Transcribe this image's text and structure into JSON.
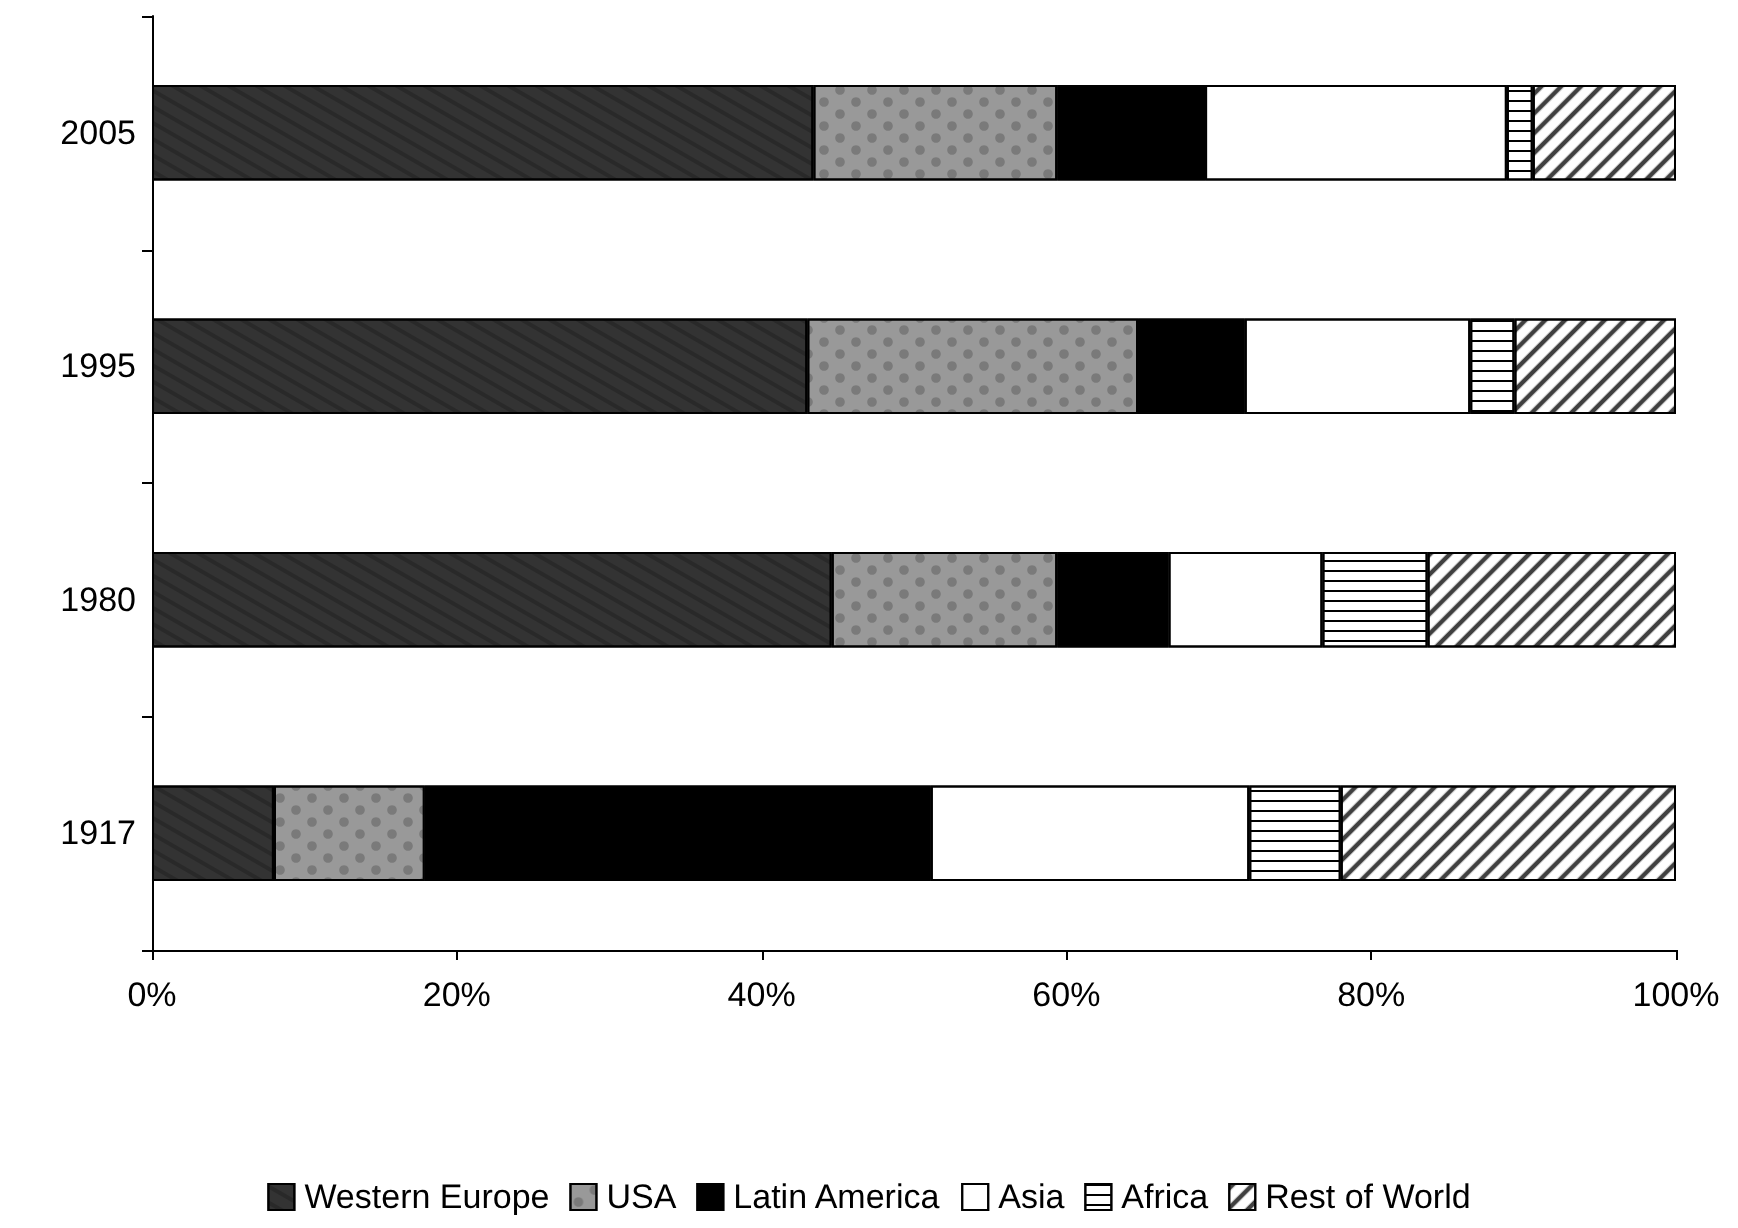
{
  "chart_data": {
    "type": "bar",
    "orientation": "horizontal",
    "stacked": true,
    "categories": [
      "2005",
      "1995",
      "1980",
      "1917"
    ],
    "series": [
      {
        "name": "Western Europe",
        "color": "#333333",
        "values": [
          43.4,
          43.0,
          44.6,
          8.0
        ]
      },
      {
        "name": "USA",
        "color": "#999999",
        "values": [
          16.0,
          21.7,
          14.8,
          9.9
        ]
      },
      {
        "name": "Latin America",
        "color": "#000000",
        "values": [
          9.7,
          7.0,
          7.3,
          33.2
        ]
      },
      {
        "name": "Asia",
        "color": "#ffffff",
        "values": [
          19.8,
          14.8,
          10.1,
          20.9
        ]
      },
      {
        "name": "Africa",
        "color": "#ffffff",
        "values": [
          1.7,
          2.9,
          6.9,
          6.0
        ]
      },
      {
        "name": "Rest of World",
        "color": "#ffffff",
        "values": [
          9.4,
          10.6,
          16.3,
          22.0
        ]
      }
    ],
    "xlim": [
      0,
      100
    ],
    "xticks": [
      {
        "value": 0,
        "label": "0%"
      },
      {
        "value": 20,
        "label": "20%"
      },
      {
        "value": 40,
        "label": "40%"
      },
      {
        "value": 60,
        "label": "60%"
      },
      {
        "value": 80,
        "label": "80%"
      },
      {
        "value": 100,
        "label": "100%"
      }
    ],
    "grid": false,
    "legend": "bottom"
  }
}
